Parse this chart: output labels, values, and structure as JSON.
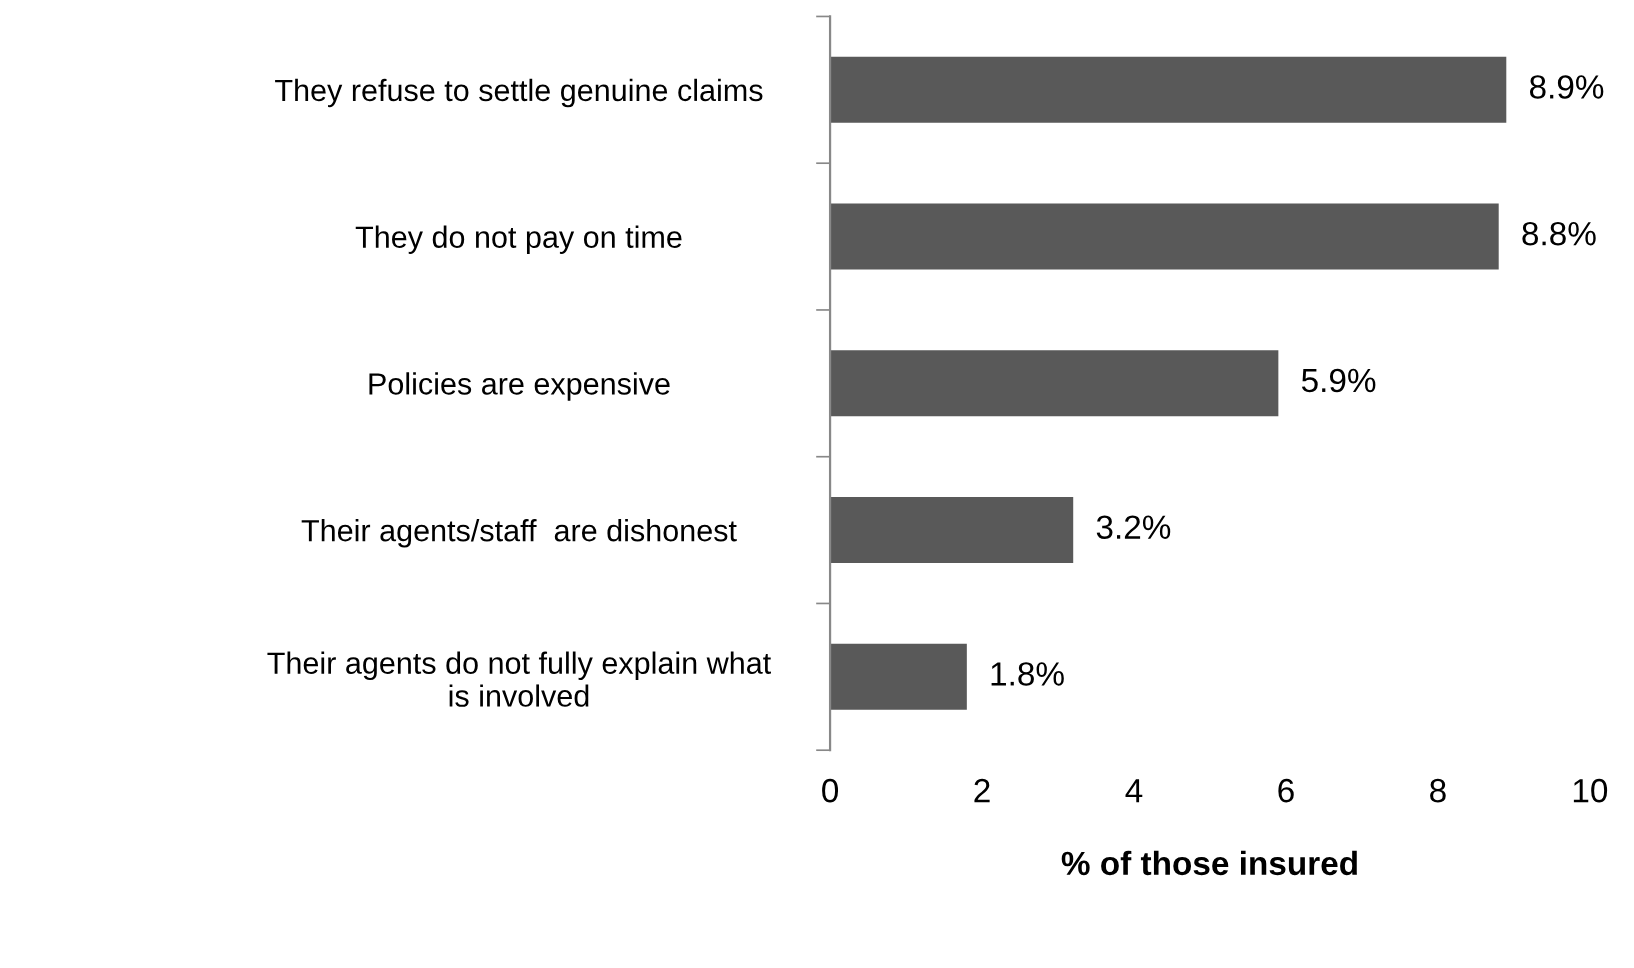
{
  "chart_data": {
    "type": "bar",
    "orientation": "horizontal",
    "xlabel": "% of those insured",
    "categories": [
      "They refuse to settle genuine claims",
      "They do not pay on time",
      "Policies are expensive",
      "Their agents/staff  are dishonest",
      "Their agents do not fully explain what\nis involved"
    ],
    "values": [
      8.9,
      8.8,
      5.9,
      3.2,
      1.8
    ],
    "value_labels": [
      "8.9%",
      "8.8%",
      "5.9%",
      "3.2%",
      "1.8%"
    ],
    "color": "#595959",
    "xlim": [
      0,
      10
    ],
    "xticks": [
      0,
      2,
      4,
      6,
      8,
      10
    ],
    "grid": false
  }
}
